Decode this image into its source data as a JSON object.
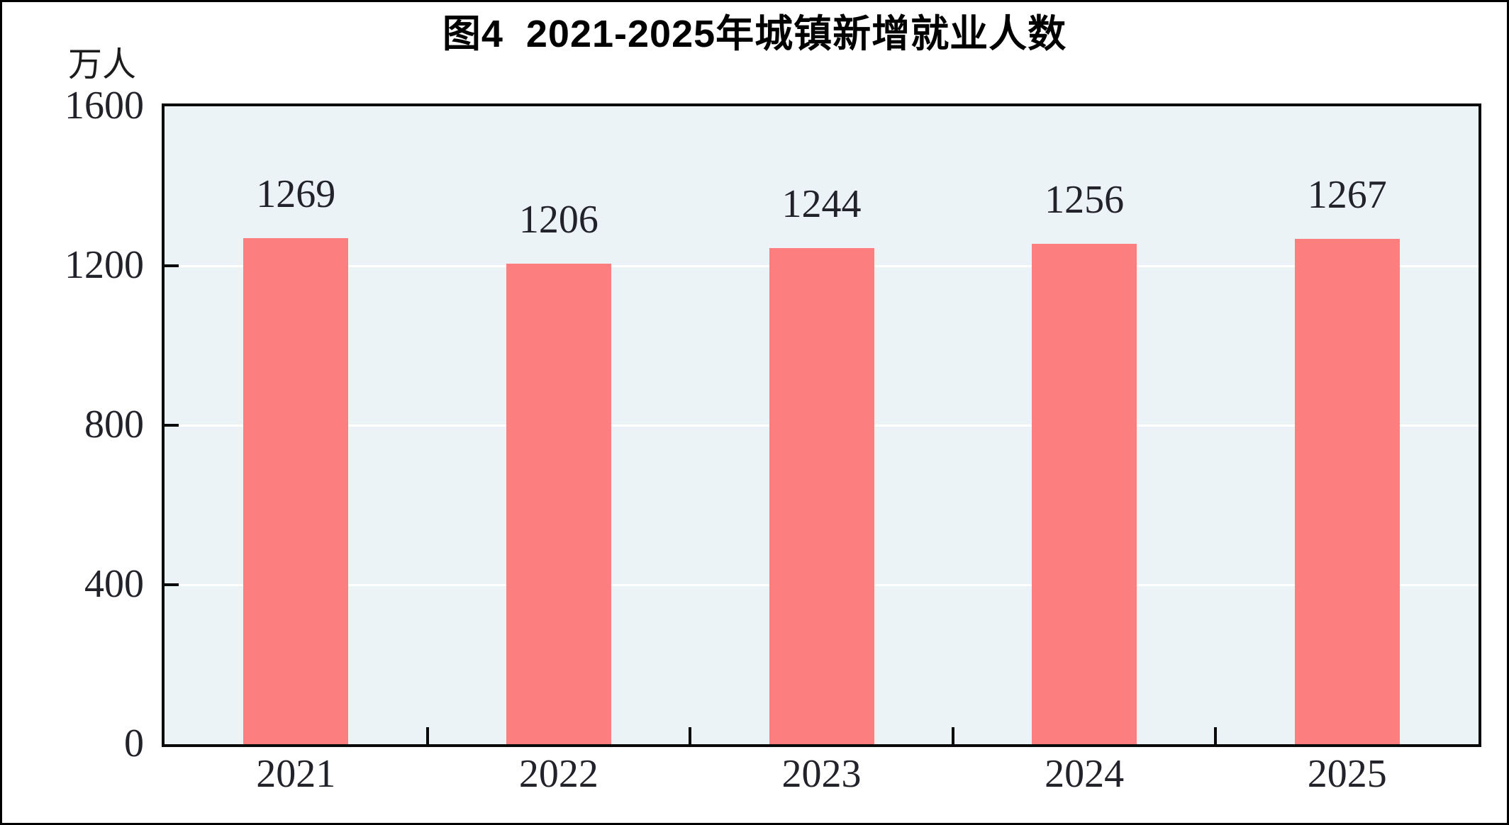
{
  "figure": {
    "title": "图4  2021-2025年城镇新增就业人数",
    "unit_label": "万人"
  },
  "chart_data": {
    "type": "bar",
    "title": "图4  2021-2025年城镇新增就业人数",
    "unit": "万人",
    "categories": [
      "2021",
      "2022",
      "2023",
      "2024",
      "2025"
    ],
    "values": [
      1269,
      1206,
      1244,
      1256,
      1267
    ],
    "data_labels": [
      1269,
      1206,
      1244,
      1256,
      1267
    ],
    "ylim": [
      0,
      1600
    ],
    "yticks": [
      0,
      400,
      800,
      1200,
      1600
    ],
    "gridlines": [
      400,
      800,
      1200
    ],
    "legend": "none",
    "grid": "horizontal-white",
    "colors": {
      "bar": "#FC7E7E",
      "plot_background": "#ECF3F6",
      "gridline": "#FFFFFF",
      "axis": "#0A0A0A",
      "text": "#22222A"
    }
  }
}
